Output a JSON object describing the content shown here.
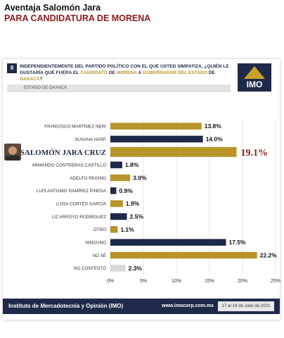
{
  "headline": {
    "title": "Aventaja Salomón Jara",
    "subtitle": "PARA CANDIDATURA DE MORENA"
  },
  "question": {
    "number": "9",
    "text_part1": "INDEPENDIENTEMENTE DEL PARTIDO POLÍTICO CON EL QUE USTED SIMPATIZA, ¿QUIÉN LE GUSTARÍA QUE FUERA EL ",
    "text_gold1": "CANDIDATO",
    "text_part2": " DE ",
    "text_gold2": "MORENA",
    "text_part3": " A ",
    "text_gold3": "GOBERNADOR DEL ESTADO",
    "text_part4": " DE ",
    "text_gold4": "OAXACA",
    "text_part5": "?",
    "region": "ESTADO DE OAXACA"
  },
  "logo": {
    "text": "IMO"
  },
  "footer": {
    "org": "Instituto de Mercadotecnia y Opinión (IMO)",
    "url": "www.imocorp.com.mx",
    "date": "17 al 19 de Julio de 2021"
  },
  "colors": {
    "gold": "#b8952a",
    "navy": "#1f2a4a",
    "light": "#d9d9d9"
  },
  "chart_data": {
    "type": "bar",
    "orientation": "horizontal",
    "categories": [
      "FRANCISCO MARTÍNEZ NERI",
      "SUSANA HARP",
      "SALOMÓN JARA CRUZ",
      "ARMANDO CONTRERAS CASTILLO",
      "ADELFO REGINO",
      "LUIS ANTONIO RAMÍREZ PINEDA",
      "LUISA CORTÉS GARCÍA",
      "LIZ ARROYO RODRÍGUEZ",
      "OTRO",
      "NINGUNO",
      "NO SÉ",
      "NO CONTESTÓ"
    ],
    "values": [
      13.8,
      14.0,
      19.1,
      1.8,
      3.0,
      0.9,
      1.9,
      2.5,
      1.1,
      17.5,
      22.2,
      2.3
    ],
    "value_labels": [
      "13.8%",
      "14.0%",
      "19.1%",
      "1.8%",
      "3.0%",
      "0.9%",
      "1.9%",
      "2.5%",
      "1.1%",
      "17.5%",
      "22.2%",
      "2.3%"
    ],
    "bar_colors": [
      "gold",
      "navy",
      "gold",
      "navy",
      "gold",
      "navy",
      "gold",
      "navy",
      "gold",
      "navy",
      "gold",
      "light"
    ],
    "highlight_index": 2,
    "xlim": [
      0,
      25
    ],
    "xticks": [
      0,
      5,
      10,
      15,
      20,
      25
    ],
    "xtick_labels": [
      "0%",
      "5%",
      "10%",
      "15%",
      "20%",
      "25%"
    ],
    "grid": true,
    "title": "",
    "xlabel": "",
    "ylabel": ""
  }
}
